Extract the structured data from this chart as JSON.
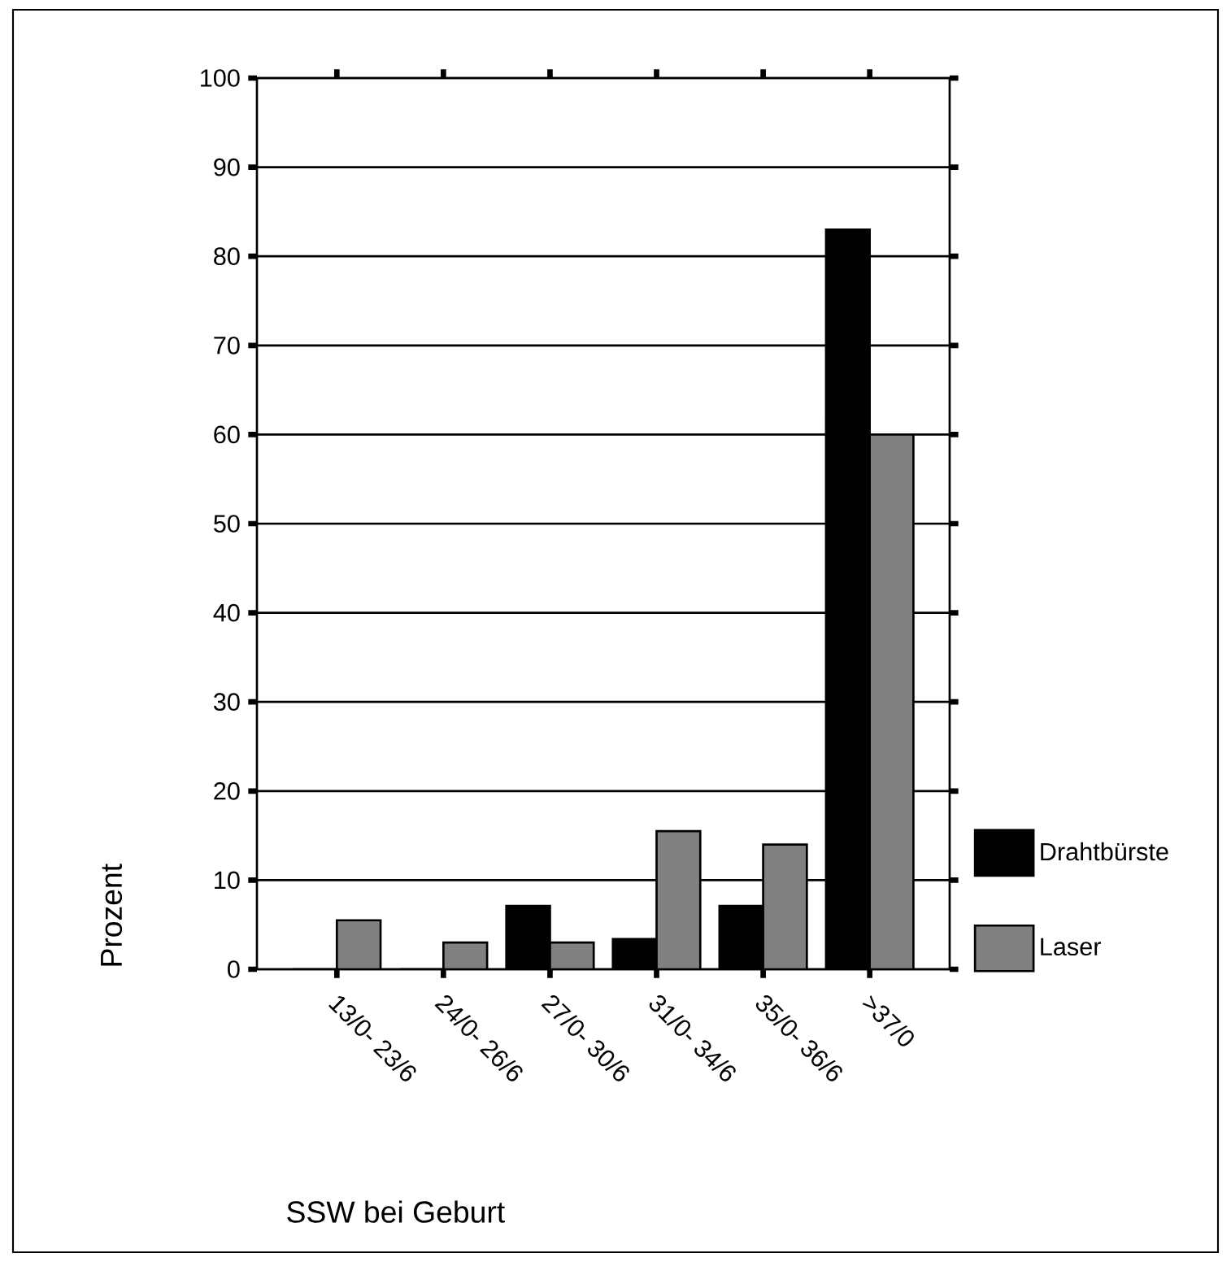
{
  "chart_data": {
    "type": "bar",
    "xlabel": "SSW bei Geburt",
    "ylabel": "Prozent",
    "categories": [
      "13/0- 23/6",
      "24/0- 26/6",
      "27/0- 30/6",
      "31/0- 34/6",
      "35/0- 36/6",
      ">37/0"
    ],
    "series": [
      {
        "name": "Drahtbürste",
        "color": "#000000",
        "values": [
          0,
          0,
          7.1,
          3.4,
          7.1,
          83
        ]
      },
      {
        "name": "Laser",
        "color": "#808080",
        "values": [
          5.5,
          3,
          3,
          15.5,
          14,
          60
        ]
      }
    ],
    "ylim": [
      0,
      100
    ],
    "yticks": [
      0,
      10,
      20,
      30,
      40,
      50,
      60,
      70,
      80,
      90,
      100
    ],
    "grid": "y",
    "legend": "right"
  }
}
